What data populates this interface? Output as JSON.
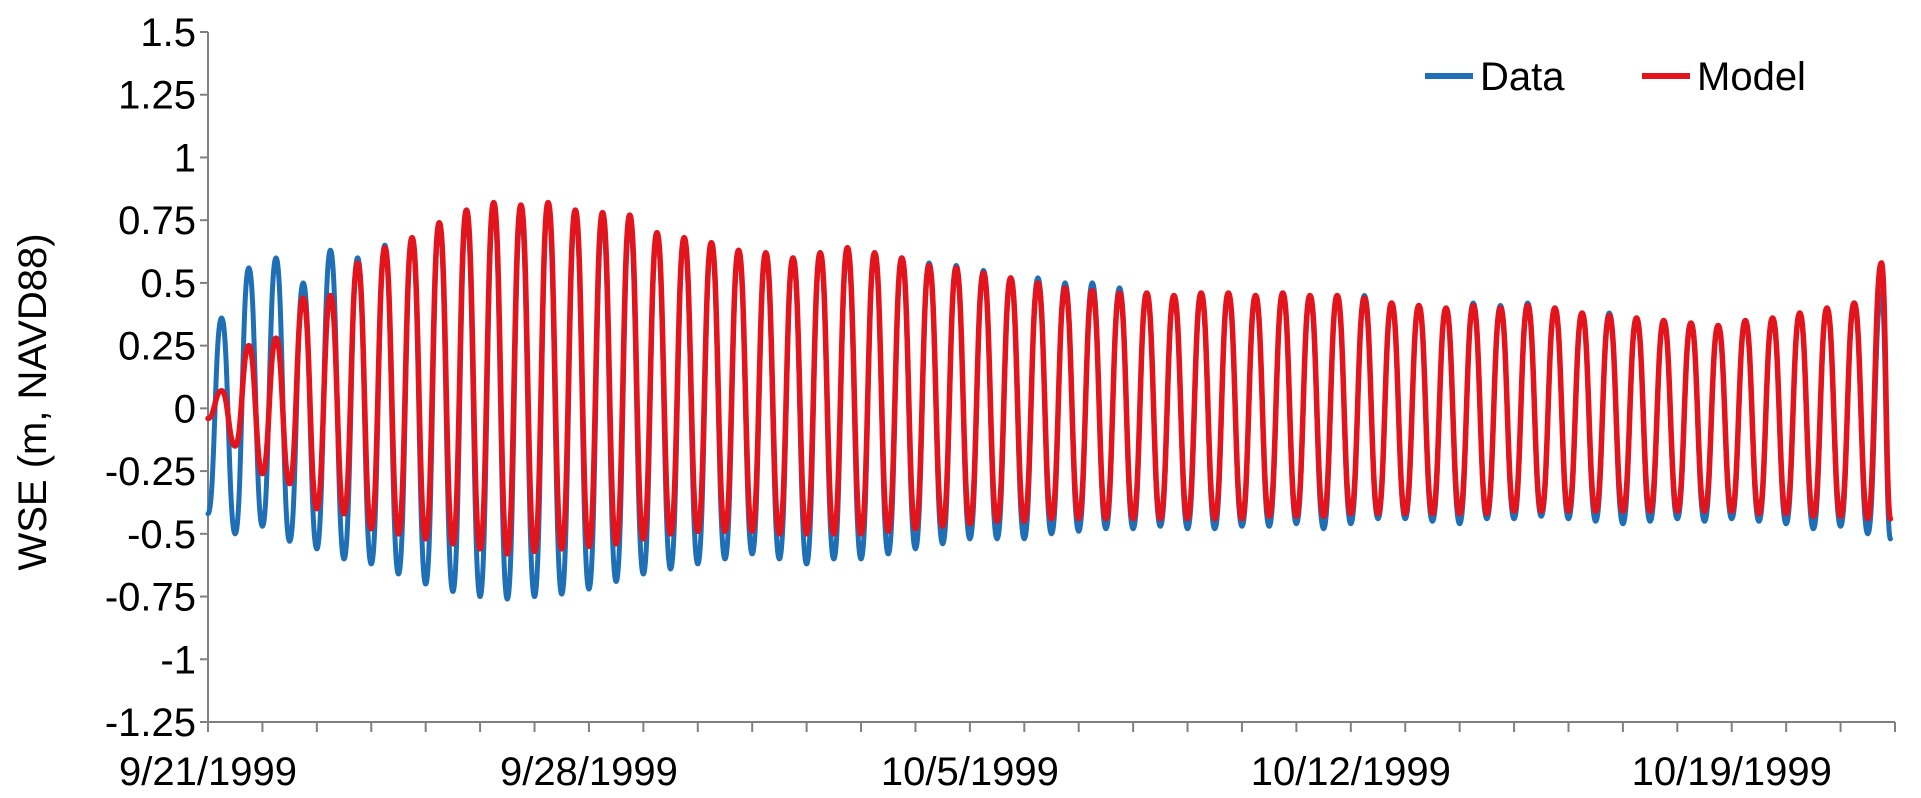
{
  "chart_data": {
    "type": "line",
    "title": "",
    "xlabel": "",
    "ylabel": "WSE (m, NAVD88)",
    "legend_position": "top-right",
    "grid": false,
    "xlim": [
      "9/21/1999",
      "10/22/1999"
    ],
    "ylim": [
      -1.25,
      1.5
    ],
    "yticks": [
      -1.25,
      -1,
      -0.75,
      -0.5,
      -0.25,
      0,
      0.25,
      0.5,
      0.75,
      1,
      1.25,
      1.5
    ],
    "ytick_labels": [
      "-1.25",
      "-1",
      "-0.75",
      "-0.5",
      "-0.25",
      "0",
      "0.25",
      "0.5",
      "0.75",
      "1",
      "1.25",
      "1.5"
    ],
    "xticks": [
      "9/21/1999",
      "9/22/1999",
      "9/23/1999",
      "9/24/1999",
      "9/25/1999",
      "9/26/1999",
      "9/27/1999",
      "9/28/1999",
      "9/29/1999",
      "9/30/1999",
      "10/1/1999",
      "10/2/1999",
      "10/3/1999",
      "10/4/1999",
      "10/5/1999",
      "10/6/1999",
      "10/7/1999",
      "10/8/1999",
      "10/9/1999",
      "10/10/1999",
      "10/11/1999",
      "10/12/1999",
      "10/13/1999",
      "10/14/1999",
      "10/15/1999",
      "10/16/1999",
      "10/17/1999",
      "10/18/1999",
      "10/19/1999",
      "10/20/1999",
      "10/21/1999",
      "10/22/1999"
    ],
    "xtick_labels_shown": [
      "9/21/1999",
      "9/28/1999",
      "10/5/1999",
      "10/12/1999",
      "10/19/1999"
    ],
    "series": [
      {
        "name": "Data",
        "color": "#1f6fb7",
        "x": [
          "9/21/1999 0:00",
          "9/21/1999 6:00",
          "9/21/1999 12:00",
          "9/21/1999 18:00",
          "9/22/1999 0:00",
          "9/22/1999 6:00",
          "9/22/1999 12:00",
          "9/22/1999 18:00",
          "9/23/1999 0:00",
          "9/23/1999 6:00",
          "9/23/1999 12:00",
          "9/23/1999 18:00",
          "9/24/1999 0:00",
          "9/24/1999 6:00",
          "9/24/1999 12:00",
          "9/24/1999 18:00",
          "9/25/1999 0:00",
          "9/25/1999 6:00",
          "9/25/1999 12:00",
          "9/25/1999 18:00",
          "9/26/1999 0:00",
          "9/26/1999 6:00",
          "9/26/1999 12:00",
          "9/26/1999 18:00",
          "9/27/1999 0:00",
          "9/27/1999 6:00",
          "9/27/1999 12:00",
          "9/27/1999 18:00",
          "9/28/1999 0:00",
          "9/28/1999 6:00",
          "9/28/1999 12:00",
          "9/28/1999 18:00",
          "9/29/1999 0:00",
          "9/29/1999 6:00",
          "9/29/1999 12:00",
          "9/29/1999 18:00",
          "9/30/1999 0:00",
          "9/30/1999 6:00",
          "9/30/1999 12:00",
          "9/30/1999 18:00",
          "10/1/1999 0:00",
          "10/1/1999 6:00",
          "10/1/1999 12:00",
          "10/1/1999 18:00",
          "10/2/1999 0:00",
          "10/2/1999 6:00",
          "10/2/1999 12:00",
          "10/2/1999 18:00",
          "10/3/1999 0:00",
          "10/3/1999 6:00",
          "10/3/1999 12:00",
          "10/3/1999 18:00",
          "10/4/1999 0:00",
          "10/4/1999 6:00",
          "10/4/1999 12:00",
          "10/4/1999 18:00",
          "10/5/1999 0:00",
          "10/5/1999 6:00",
          "10/5/1999 12:00",
          "10/5/1999 18:00",
          "10/6/1999 0:00",
          "10/6/1999 6:00",
          "10/6/1999 12:00",
          "10/6/1999 18:00",
          "10/7/1999 0:00",
          "10/7/1999 6:00",
          "10/7/1999 12:00",
          "10/7/1999 18:00",
          "10/8/1999 0:00",
          "10/8/1999 6:00",
          "10/8/1999 12:00",
          "10/8/1999 18:00",
          "10/9/1999 0:00",
          "10/9/1999 6:00",
          "10/9/1999 12:00",
          "10/9/1999 18:00",
          "10/10/1999 0:00",
          "10/10/1999 6:00",
          "10/10/1999 12:00",
          "10/10/1999 18:00",
          "10/11/1999 0:00",
          "10/11/1999 6:00",
          "10/11/1999 12:00",
          "10/11/1999 18:00",
          "10/12/1999 0:00",
          "10/12/1999 6:00",
          "10/12/1999 12:00",
          "10/12/1999 18:00",
          "10/13/1999 0:00",
          "10/13/1999 6:00",
          "10/13/1999 12:00",
          "10/13/1999 18:00",
          "10/14/1999 0:00",
          "10/14/1999 6:00",
          "10/14/1999 12:00",
          "10/14/1999 18:00",
          "10/15/1999 0:00",
          "10/15/1999 6:00",
          "10/15/1999 12:00",
          "10/15/1999 18:00",
          "10/16/1999 0:00",
          "10/16/1999 6:00",
          "10/16/1999 12:00",
          "10/16/1999 18:00",
          "10/17/1999 0:00",
          "10/17/1999 6:00",
          "10/17/1999 12:00",
          "10/17/1999 18:00",
          "10/18/1999 0:00",
          "10/18/1999 6:00",
          "10/18/1999 12:00",
          "10/18/1999 18:00",
          "10/19/1999 0:00",
          "10/19/1999 6:00",
          "10/19/1999 12:00",
          "10/19/1999 18:00",
          "10/20/1999 0:00",
          "10/20/1999 6:00",
          "10/20/1999 12:00",
          "10/20/1999 18:00",
          "10/21/1999 0:00",
          "10/21/1999 6:00",
          "10/21/1999 12:00",
          "10/21/1999 18:00",
          "10/21/1999 22:00"
        ],
        "y": [
          -0.42,
          0.36,
          -0.5,
          0.56,
          -0.47,
          0.6,
          -0.53,
          0.5,
          -0.56,
          0.63,
          -0.6,
          0.6,
          -0.62,
          0.65,
          -0.66,
          0.68,
          -0.7,
          0.73,
          -0.73,
          0.77,
          -0.75,
          0.8,
          -0.76,
          0.78,
          -0.75,
          0.81,
          -0.74,
          0.78,
          -0.72,
          0.75,
          -0.69,
          0.74,
          -0.66,
          0.7,
          -0.64,
          0.68,
          -0.62,
          0.66,
          -0.6,
          0.63,
          -0.58,
          0.62,
          -0.6,
          0.6,
          -0.62,
          0.62,
          -0.6,
          0.63,
          -0.6,
          0.62,
          -0.58,
          0.6,
          -0.56,
          0.58,
          -0.54,
          0.57,
          -0.52,
          0.55,
          -0.52,
          0.52,
          -0.52,
          0.52,
          -0.5,
          0.5,
          -0.49,
          0.5,
          -0.48,
          0.48,
          -0.48,
          0.46,
          -0.47,
          0.44,
          -0.48,
          0.45,
          -0.48,
          0.46,
          -0.47,
          0.45,
          -0.47,
          0.46,
          -0.46,
          0.44,
          -0.48,
          0.45,
          -0.46,
          0.45,
          -0.44,
          0.42,
          -0.44,
          0.41,
          -0.45,
          0.4,
          -0.46,
          0.42,
          -0.44,
          0.41,
          -0.44,
          0.42,
          -0.43,
          0.4,
          -0.44,
          0.38,
          -0.45,
          0.38,
          -0.46,
          0.36,
          -0.45,
          0.35,
          -0.44,
          0.34,
          -0.45,
          0.33,
          -0.44,
          0.35,
          -0.45,
          0.36,
          -0.46,
          0.38,
          -0.48,
          0.4,
          -0.47,
          0.42,
          -0.5,
          0.46,
          -0.52
        ]
      },
      {
        "name": "Model",
        "color": "#e3141c",
        "x": [
          "9/21/1999 0:00",
          "9/21/1999 6:00",
          "9/21/1999 12:00",
          "9/21/1999 18:00",
          "9/22/1999 0:00",
          "9/22/1999 6:00",
          "9/22/1999 12:00",
          "9/22/1999 18:00",
          "9/23/1999 0:00",
          "9/23/1999 6:00",
          "9/23/1999 12:00",
          "9/23/1999 18:00",
          "9/24/1999 0:00",
          "9/24/1999 6:00",
          "9/24/1999 12:00",
          "9/24/1999 18:00",
          "9/25/1999 0:00",
          "9/25/1999 6:00",
          "9/25/1999 12:00",
          "9/25/1999 18:00",
          "9/26/1999 0:00",
          "9/26/1999 6:00",
          "9/26/1999 12:00",
          "9/26/1999 18:00",
          "9/27/1999 0:00",
          "9/27/1999 6:00",
          "9/27/1999 12:00",
          "9/27/1999 18:00",
          "9/28/1999 0:00",
          "9/28/1999 6:00",
          "9/28/1999 12:00",
          "9/28/1999 18:00",
          "9/29/1999 0:00",
          "9/29/1999 6:00",
          "9/29/1999 12:00",
          "9/29/1999 18:00",
          "9/30/1999 0:00",
          "9/30/1999 6:00",
          "9/30/1999 12:00",
          "9/30/1999 18:00",
          "10/1/1999 0:00",
          "10/1/1999 6:00",
          "10/1/1999 12:00",
          "10/1/1999 18:00",
          "10/2/1999 0:00",
          "10/2/1999 6:00",
          "10/2/1999 12:00",
          "10/2/1999 18:00",
          "10/3/1999 0:00",
          "10/3/1999 6:00",
          "10/3/1999 12:00",
          "10/3/1999 18:00",
          "10/4/1999 0:00",
          "10/4/1999 6:00",
          "10/4/1999 12:00",
          "10/4/1999 18:00",
          "10/5/1999 0:00",
          "10/5/1999 6:00",
          "10/5/1999 12:00",
          "10/5/1999 18:00",
          "10/6/1999 0:00",
          "10/6/1999 6:00",
          "10/6/1999 12:00",
          "10/6/1999 18:00",
          "10/7/1999 0:00",
          "10/7/1999 6:00",
          "10/7/1999 12:00",
          "10/7/1999 18:00",
          "10/8/1999 0:00",
          "10/8/1999 6:00",
          "10/8/1999 12:00",
          "10/8/1999 18:00",
          "10/9/1999 0:00",
          "10/9/1999 6:00",
          "10/9/1999 12:00",
          "10/9/1999 18:00",
          "10/10/1999 0:00",
          "10/10/1999 6:00",
          "10/10/1999 12:00",
          "10/10/1999 18:00",
          "10/11/1999 0:00",
          "10/11/1999 6:00",
          "10/11/1999 12:00",
          "10/11/1999 18:00",
          "10/12/1999 0:00",
          "10/12/1999 6:00",
          "10/12/1999 12:00",
          "10/12/1999 18:00",
          "10/13/1999 0:00",
          "10/13/1999 6:00",
          "10/13/1999 12:00",
          "10/13/1999 18:00",
          "10/14/1999 0:00",
          "10/14/1999 6:00",
          "10/14/1999 12:00",
          "10/14/1999 18:00",
          "10/15/1999 0:00",
          "10/15/1999 6:00",
          "10/15/1999 12:00",
          "10/15/1999 18:00",
          "10/16/1999 0:00",
          "10/16/1999 6:00",
          "10/16/1999 12:00",
          "10/16/1999 18:00",
          "10/17/1999 0:00",
          "10/17/1999 6:00",
          "10/17/1999 12:00",
          "10/17/1999 18:00",
          "10/18/1999 0:00",
          "10/18/1999 6:00",
          "10/18/1999 12:00",
          "10/18/1999 18:00",
          "10/19/1999 0:00",
          "10/19/1999 6:00",
          "10/19/1999 12:00",
          "10/19/1999 18:00",
          "10/20/1999 0:00",
          "10/20/1999 6:00",
          "10/20/1999 12:00",
          "10/20/1999 18:00",
          "10/21/1999 0:00",
          "10/21/1999 6:00",
          "10/21/1999 12:00",
          "10/21/1999 18:00",
          "10/21/1999 22:00"
        ],
        "y": [
          -0.04,
          0.07,
          -0.15,
          0.25,
          -0.26,
          0.28,
          -0.3,
          0.44,
          -0.4,
          0.45,
          -0.42,
          0.58,
          -0.48,
          0.64,
          -0.5,
          0.68,
          -0.52,
          0.74,
          -0.54,
          0.79,
          -0.56,
          0.82,
          -0.58,
          0.81,
          -0.57,
          0.82,
          -0.56,
          0.79,
          -0.55,
          0.78,
          -0.54,
          0.77,
          -0.52,
          0.7,
          -0.5,
          0.68,
          -0.49,
          0.66,
          -0.49,
          0.63,
          -0.49,
          0.62,
          -0.5,
          0.6,
          -0.5,
          0.62,
          -0.5,
          0.64,
          -0.5,
          0.62,
          -0.49,
          0.6,
          -0.48,
          0.57,
          -0.47,
          0.56,
          -0.46,
          0.54,
          -0.45,
          0.52,
          -0.45,
          0.5,
          -0.44,
          0.48,
          -0.44,
          0.47,
          -0.44,
          0.46,
          -0.44,
          0.46,
          -0.44,
          0.45,
          -0.44,
          0.46,
          -0.44,
          0.46,
          -0.44,
          0.45,
          -0.43,
          0.46,
          -0.43,
          0.45,
          -0.43,
          0.45,
          -0.42,
          0.44,
          -0.42,
          0.42,
          -0.42,
          0.41,
          -0.42,
          0.4,
          -0.42,
          0.41,
          -0.42,
          0.4,
          -0.41,
          0.41,
          -0.41,
          0.4,
          -0.41,
          0.38,
          -0.41,
          0.37,
          -0.41,
          0.36,
          -0.41,
          0.35,
          -0.41,
          0.34,
          -0.41,
          0.33,
          -0.41,
          0.35,
          -0.42,
          0.36,
          -0.42,
          0.38,
          -0.43,
          0.4,
          -0.43,
          0.42,
          -0.44,
          0.58,
          -0.44
        ]
      }
    ]
  }
}
